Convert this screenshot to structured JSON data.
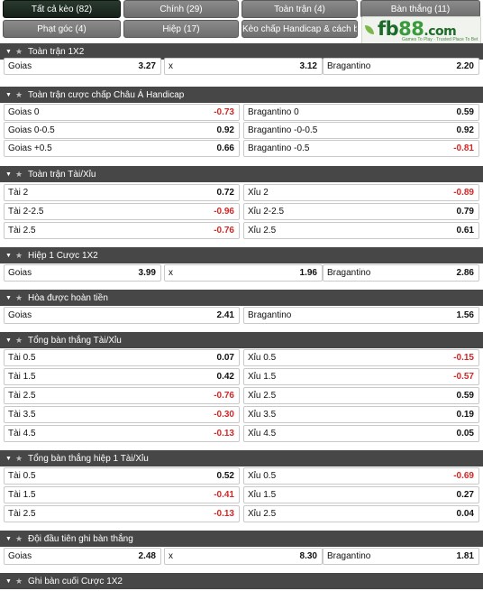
{
  "tabs": [
    {
      "label": "Tất cả kèo (82)",
      "active": true
    },
    {
      "label": "Chính (29)",
      "active": false
    },
    {
      "label": "Toàn trận (4)",
      "active": false
    },
    {
      "label": "Bàn thắng (11)",
      "active": false
    },
    {
      "label": "Phạt góc (4)",
      "active": false
    },
    {
      "label": "Hiệp (17)",
      "active": false
    },
    {
      "label": "Kèo chấp Handicap & cách biệt (3)",
      "active": false
    }
  ],
  "logo": {
    "brand_a": "fb",
    "brand_b": "88",
    "brand_c": ".com",
    "tagline": "Games To Play · Trusted Place To Bet"
  },
  "icons": {
    "collapse": "chevron-down-icon",
    "favorite": "star-icon"
  },
  "colors": {
    "negative_odds": "#d12727",
    "header_bg": "#474747",
    "active_tab": "#1a2a1f"
  },
  "sections": [
    {
      "title": "Toàn trận 1X2",
      "layout": 3,
      "rows": [
        [
          {
            "label": "Goias",
            "odds": "3.27"
          },
          {
            "label": "x",
            "odds": "3.12"
          },
          {
            "label": "Bragantino",
            "odds": "2.20"
          }
        ]
      ]
    },
    {
      "title": "Toàn trận cược chấp Châu Á Handicap",
      "layout": 2,
      "rows": [
        [
          {
            "label": "Goias",
            "handicap": "0",
            "odds": "-0.73"
          },
          {
            "label": "Bragantino",
            "handicap": "0",
            "odds": "0.59"
          }
        ],
        [
          {
            "label": "Goias",
            "handicap": "0-0.5",
            "odds": "0.92"
          },
          {
            "label": "Bragantino",
            "handicap": "-0-0.5",
            "odds": "0.92"
          }
        ],
        [
          {
            "label": "Goias",
            "handicap": "+0.5",
            "odds": "0.66"
          },
          {
            "label": "Bragantino",
            "handicap": "-0.5",
            "odds": "-0.81"
          }
        ]
      ]
    },
    {
      "title": "Toàn trận Tài/Xỉu",
      "layout": 2,
      "rows": [
        [
          {
            "label": "Tài",
            "handicap": "2",
            "odds": "0.72"
          },
          {
            "label": "Xỉu",
            "handicap": "2",
            "odds": "-0.89"
          }
        ],
        [
          {
            "label": "Tài",
            "handicap": "2-2.5",
            "odds": "-0.96"
          },
          {
            "label": "Xỉu",
            "handicap": "2-2.5",
            "odds": "0.79"
          }
        ],
        [
          {
            "label": "Tài",
            "handicap": "2.5",
            "odds": "-0.76"
          },
          {
            "label": "Xỉu",
            "handicap": "2.5",
            "odds": "0.61"
          }
        ]
      ]
    },
    {
      "title": "Hiệp 1 Cược 1X2",
      "layout": 3,
      "rows": [
        [
          {
            "label": "Goias",
            "odds": "3.99"
          },
          {
            "label": "x",
            "odds": "1.96"
          },
          {
            "label": "Bragantino",
            "odds": "2.86"
          }
        ]
      ]
    },
    {
      "title": "Hòa được hoàn tiền",
      "layout": 2,
      "rows": [
        [
          {
            "label": "Goias",
            "odds": "2.41"
          },
          {
            "label": "Bragantino",
            "odds": "1.56"
          }
        ]
      ]
    },
    {
      "title": "Tổng bàn thắng Tài/Xỉu",
      "layout": 2,
      "rows": [
        [
          {
            "label": "Tài 0.5",
            "odds": "0.07"
          },
          {
            "label": "Xỉu 0.5",
            "odds": "-0.15"
          }
        ],
        [
          {
            "label": "Tài 1.5",
            "odds": "0.42"
          },
          {
            "label": "Xỉu 1.5",
            "odds": "-0.57"
          }
        ],
        [
          {
            "label": "Tài 2.5",
            "odds": "-0.76"
          },
          {
            "label": "Xỉu 2.5",
            "odds": "0.59"
          }
        ],
        [
          {
            "label": "Tài 3.5",
            "odds": "-0.30"
          },
          {
            "label": "Xỉu 3.5",
            "odds": "0.19"
          }
        ],
        [
          {
            "label": "Tài 4.5",
            "odds": "-0.13"
          },
          {
            "label": "Xỉu 4.5",
            "odds": "0.05"
          }
        ]
      ]
    },
    {
      "title": "Tổng bàn thắng hiệp 1 Tài/Xỉu",
      "layout": 2,
      "rows": [
        [
          {
            "label": "Tài 0.5",
            "odds": "0.52"
          },
          {
            "label": "Xỉu 0.5",
            "odds": "-0.69"
          }
        ],
        [
          {
            "label": "Tài 1.5",
            "odds": "-0.41"
          },
          {
            "label": "Xỉu 1.5",
            "odds": "0.27"
          }
        ],
        [
          {
            "label": "Tài 2.5",
            "odds": "-0.13"
          },
          {
            "label": "Xỉu 2.5",
            "odds": "0.04"
          }
        ]
      ]
    },
    {
      "title": "Đội đầu tiên ghi bàn thắng",
      "layout": 3,
      "rows": [
        [
          {
            "label": "Goias",
            "odds": "2.48"
          },
          {
            "label": "x",
            "odds": "8.30"
          },
          {
            "label": "Bragantino",
            "odds": "1.81"
          }
        ]
      ]
    },
    {
      "title": "Ghi bàn cuối Cược 1X2",
      "layout": 3,
      "rows": []
    }
  ]
}
